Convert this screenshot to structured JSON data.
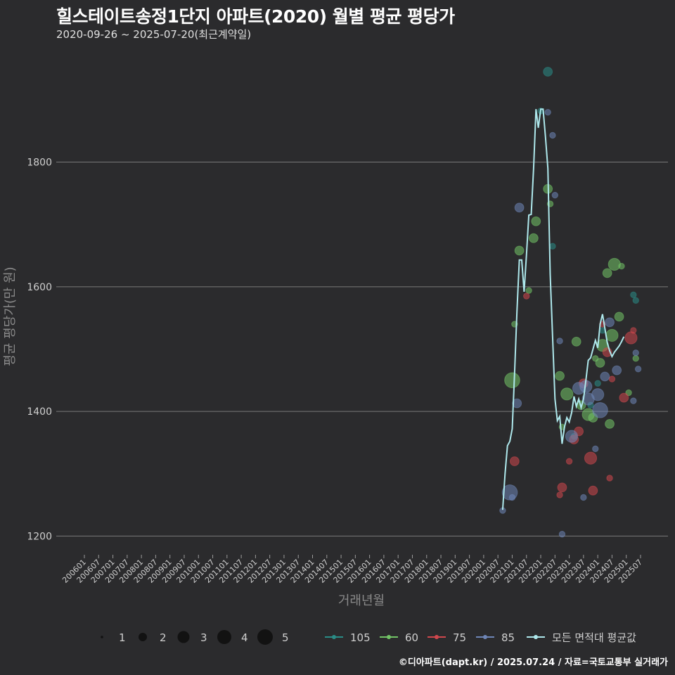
{
  "header": {
    "title": "힐스테이트송정1단지 아파트(2020) 월별 평균 평당가",
    "subtitle": "2020-09-26 ~ 2025-07-20(최근계약일)"
  },
  "caption": "©디아파트(dapt.kr) / 2025.07.24 / 자료=국토교통부 실거래가",
  "chart_data": {
    "type": "scatter",
    "xlabel": "거래년월",
    "ylabel": "평균 평당가(만 원)",
    "ylim": [
      1170,
      1980
    ],
    "yticks": [
      1200,
      1400,
      1600,
      1800
    ],
    "x_range_months": [
      "2006-01",
      "2025-07"
    ],
    "xtick_labels": [
      "200601",
      "200607",
      "200701",
      "200707",
      "200801",
      "200807",
      "200901",
      "200907",
      "201001",
      "201007",
      "201101",
      "201107",
      "201201",
      "201207",
      "201301",
      "201307",
      "201401",
      "201407",
      "201501",
      "201507",
      "201601",
      "201607",
      "201701",
      "201707",
      "201801",
      "201807",
      "201901",
      "201907",
      "202001",
      "202007",
      "202101",
      "202107",
      "202201",
      "202207",
      "202301",
      "202307",
      "202401",
      "202407",
      "202501",
      "202507"
    ],
    "size_legend": {
      "values": [
        1,
        2,
        3,
        4,
        5
      ]
    },
    "colors": {
      "105": "#2a8c86",
      "60": "#72c466",
      "75": "#d0474d",
      "85": "#6e85b6",
      "avg": "#aee8ec"
    },
    "area_legend": [
      "105",
      "60",
      "75",
      "85"
    ],
    "avg_legend_label": "모든 면적대 평균값",
    "series": [
      {
        "name": "105",
        "points": [
          {
            "x": "2022-04",
            "y": 1945,
            "n": 2
          },
          {
            "x": "2022-01",
            "y": 1882,
            "n": 1
          },
          {
            "x": "2022-06",
            "y": 1665,
            "n": 1
          },
          {
            "x": "2023-03",
            "y": 1360,
            "n": 1
          },
          {
            "x": "2024-01",
            "y": 1445,
            "n": 1
          },
          {
            "x": "2025-04",
            "y": 1587,
            "n": 1
          },
          {
            "x": "2025-05",
            "y": 1578,
            "n": 1
          },
          {
            "x": "2023-10",
            "y": 1410,
            "n": 1
          },
          {
            "x": "2024-03",
            "y": 1530,
            "n": 1
          }
        ]
      },
      {
        "name": "60",
        "points": [
          {
            "x": "2021-01",
            "y": 1450,
            "n": 4
          },
          {
            "x": "2021-04",
            "y": 1658,
            "n": 2
          },
          {
            "x": "2021-10",
            "y": 1678,
            "n": 2
          },
          {
            "x": "2021-11",
            "y": 1705,
            "n": 2
          },
          {
            "x": "2021-08",
            "y": 1594,
            "n": 1
          },
          {
            "x": "2022-04",
            "y": 1757,
            "n": 2
          },
          {
            "x": "2022-05",
            "y": 1733,
            "n": 1
          },
          {
            "x": "2021-02",
            "y": 1540,
            "n": 1
          },
          {
            "x": "2022-09",
            "y": 1457,
            "n": 2
          },
          {
            "x": "2022-12",
            "y": 1428,
            "n": 3
          },
          {
            "x": "2023-04",
            "y": 1512,
            "n": 2
          },
          {
            "x": "2023-06",
            "y": 1410,
            "n": 2
          },
          {
            "x": "2023-09",
            "y": 1395,
            "n": 3
          },
          {
            "x": "2023-11",
            "y": 1390,
            "n": 2
          },
          {
            "x": "2024-02",
            "y": 1478,
            "n": 2
          },
          {
            "x": "2024-03",
            "y": 1506,
            "n": 3
          },
          {
            "x": "2024-05",
            "y": 1622,
            "n": 2
          },
          {
            "x": "2024-08",
            "y": 1636,
            "n": 3
          },
          {
            "x": "2024-06",
            "y": 1380,
            "n": 2
          },
          {
            "x": "2024-10",
            "y": 1552,
            "n": 2
          },
          {
            "x": "2024-11",
            "y": 1633,
            "n": 1
          },
          {
            "x": "2025-02",
            "y": 1430,
            "n": 1
          },
          {
            "x": "2025-05",
            "y": 1485,
            "n": 1
          },
          {
            "x": "2024-07",
            "y": 1522,
            "n": 3
          },
          {
            "x": "2022-10",
            "y": 1375,
            "n": 1
          },
          {
            "x": "2023-12",
            "y": 1485,
            "n": 1
          }
        ]
      },
      {
        "name": "75",
        "points": [
          {
            "x": "2021-02",
            "y": 1320,
            "n": 2
          },
          {
            "x": "2021-07",
            "y": 1585,
            "n": 1
          },
          {
            "x": "2022-09",
            "y": 1266,
            "n": 1
          },
          {
            "x": "2022-10",
            "y": 1278,
            "n": 2
          },
          {
            "x": "2023-01",
            "y": 1320,
            "n": 1
          },
          {
            "x": "2023-03",
            "y": 1355,
            "n": 2
          },
          {
            "x": "2023-05",
            "y": 1368,
            "n": 2
          },
          {
            "x": "2023-07",
            "y": 1445,
            "n": 2
          },
          {
            "x": "2023-10",
            "y": 1325,
            "n": 3
          },
          {
            "x": "2023-11",
            "y": 1273,
            "n": 2
          },
          {
            "x": "2024-05",
            "y": 1495,
            "n": 2
          },
          {
            "x": "2024-06",
            "y": 1293,
            "n": 1
          },
          {
            "x": "2024-07",
            "y": 1452,
            "n": 1
          },
          {
            "x": "2024-12",
            "y": 1422,
            "n": 2
          },
          {
            "x": "2025-03",
            "y": 1518,
            "n": 3
          },
          {
            "x": "2025-04",
            "y": 1530,
            "n": 1
          },
          {
            "x": "2024-03",
            "y": 1540,
            "n": 1
          }
        ]
      },
      {
        "name": "85",
        "points": [
          {
            "x": "2020-09",
            "y": 1241,
            "n": 1
          },
          {
            "x": "2020-12",
            "y": 1270,
            "n": 4
          },
          {
            "x": "2021-01",
            "y": 1262,
            "n": 1
          },
          {
            "x": "2021-03",
            "y": 1413,
            "n": 2
          },
          {
            "x": "2021-04",
            "y": 1727,
            "n": 2
          },
          {
            "x": "2022-04",
            "y": 1880,
            "n": 1
          },
          {
            "x": "2022-06",
            "y": 1843,
            "n": 1
          },
          {
            "x": "2022-07",
            "y": 1747,
            "n": 1
          },
          {
            "x": "2022-09",
            "y": 1513,
            "n": 1
          },
          {
            "x": "2022-10",
            "y": 1203,
            "n": 1
          },
          {
            "x": "2023-02",
            "y": 1360,
            "n": 3
          },
          {
            "x": "2023-05",
            "y": 1437,
            "n": 3
          },
          {
            "x": "2023-07",
            "y": 1262,
            "n": 1
          },
          {
            "x": "2023-08",
            "y": 1440,
            "n": 3
          },
          {
            "x": "2023-09",
            "y": 1420,
            "n": 3
          },
          {
            "x": "2023-12",
            "y": 1340,
            "n": 1
          },
          {
            "x": "2024-01",
            "y": 1427,
            "n": 3
          },
          {
            "x": "2024-02",
            "y": 1402,
            "n": 4
          },
          {
            "x": "2024-04",
            "y": 1456,
            "n": 2
          },
          {
            "x": "2024-06",
            "y": 1543,
            "n": 2
          },
          {
            "x": "2024-09",
            "y": 1466,
            "n": 2
          },
          {
            "x": "2025-05",
            "y": 1494,
            "n": 1
          },
          {
            "x": "2025-06",
            "y": 1468,
            "n": 1
          },
          {
            "x": "2025-04",
            "y": 1417,
            "n": 1
          }
        ]
      }
    ],
    "average_line": [
      {
        "x": "2020-09",
        "y": 1242
      },
      {
        "x": "2020-10",
        "y": 1300
      },
      {
        "x": "2020-11",
        "y": 1345
      },
      {
        "x": "2020-12",
        "y": 1352
      },
      {
        "x": "2021-01",
        "y": 1372
      },
      {
        "x": "2021-02",
        "y": 1460
      },
      {
        "x": "2021-03",
        "y": 1560
      },
      {
        "x": "2021-04",
        "y": 1643
      },
      {
        "x": "2021-05",
        "y": 1643
      },
      {
        "x": "2021-06",
        "y": 1592
      },
      {
        "x": "2021-07",
        "y": 1650
      },
      {
        "x": "2021-08",
        "y": 1715
      },
      {
        "x": "2021-09",
        "y": 1716
      },
      {
        "x": "2021-10",
        "y": 1790
      },
      {
        "x": "2021-11",
        "y": 1885
      },
      {
        "x": "2021-12",
        "y": 1855
      },
      {
        "x": "2022-01",
        "y": 1885
      },
      {
        "x": "2022-02",
        "y": 1885
      },
      {
        "x": "2022-03",
        "y": 1840
      },
      {
        "x": "2022-04",
        "y": 1790
      },
      {
        "x": "2022-05",
        "y": 1620
      },
      {
        "x": "2022-06",
        "y": 1520
      },
      {
        "x": "2022-07",
        "y": 1420
      },
      {
        "x": "2022-08",
        "y": 1385
      },
      {
        "x": "2022-09",
        "y": 1392
      },
      {
        "x": "2022-10",
        "y": 1348
      },
      {
        "x": "2022-11",
        "y": 1375
      },
      {
        "x": "2022-12",
        "y": 1390
      },
      {
        "x": "2023-01",
        "y": 1383
      },
      {
        "x": "2023-02",
        "y": 1398
      },
      {
        "x": "2023-03",
        "y": 1424
      },
      {
        "x": "2023-04",
        "y": 1408
      },
      {
        "x": "2023-05",
        "y": 1420
      },
      {
        "x": "2023-06",
        "y": 1406
      },
      {
        "x": "2023-07",
        "y": 1420
      },
      {
        "x": "2023-08",
        "y": 1450
      },
      {
        "x": "2023-09",
        "y": 1482
      },
      {
        "x": "2023-10",
        "y": 1486
      },
      {
        "x": "2023-11",
        "y": 1500
      },
      {
        "x": "2023-12",
        "y": 1514
      },
      {
        "x": "2024-01",
        "y": 1502
      },
      {
        "x": "2024-02",
        "y": 1540
      },
      {
        "x": "2024-03",
        "y": 1556
      },
      {
        "x": "2024-04",
        "y": 1533
      },
      {
        "x": "2024-05",
        "y": 1510
      },
      {
        "x": "2024-06",
        "y": 1497
      },
      {
        "x": "2024-07",
        "y": 1488
      },
      {
        "x": "2024-08",
        "y": 1495
      },
      {
        "x": "2024-09",
        "y": 1500
      },
      {
        "x": "2024-10",
        "y": 1505
      },
      {
        "x": "2024-11",
        "y": 1512
      },
      {
        "x": "2024-12",
        "y": 1520
      }
    ]
  }
}
